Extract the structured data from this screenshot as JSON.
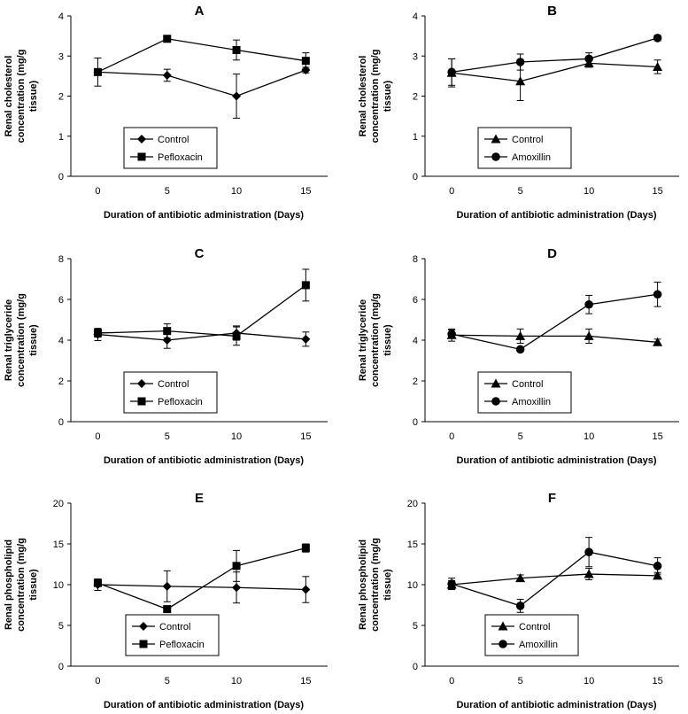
{
  "chart_data": [
    {
      "panel": "A",
      "type": "line",
      "x": [
        0,
        5,
        10,
        15
      ],
      "ylim": [
        0,
        4
      ],
      "yticks": [
        0,
        1,
        2,
        3,
        4
      ],
      "xlabel": "Duration of antibiotic administration (Days)",
      "ylabel": [
        "Renal cholesterol",
        "concentration (mg/g",
        "tissue)"
      ],
      "series": [
        {
          "name": "Control",
          "marker": "diamond",
          "values": [
            2.6,
            2.52,
            2.0,
            2.65
          ],
          "errors": [
            0.0,
            0.15,
            0.55,
            0.07
          ]
        },
        {
          "name": "Pefloxacin",
          "marker": "square",
          "values": [
            2.6,
            3.43,
            3.15,
            2.88
          ],
          "errors": [
            0.35,
            0.08,
            0.25,
            0.2
          ]
        }
      ]
    },
    {
      "panel": "B",
      "type": "line",
      "x": [
        0,
        5,
        10,
        15
      ],
      "ylim": [
        0,
        4
      ],
      "yticks": [
        0,
        1,
        2,
        3,
        4
      ],
      "xlabel": "Duration of antibiotic administration (Days)",
      "ylabel": [
        "Renal cholesterol",
        "concentration (mg/g",
        "tissue)"
      ],
      "series": [
        {
          "name": "Control",
          "marker": "triangle",
          "values": [
            2.58,
            2.37,
            2.82,
            2.73
          ],
          "errors": [
            0.35,
            0.48,
            0.1,
            0.17
          ]
        },
        {
          "name": "Amoxillin",
          "marker": "circle",
          "values": [
            2.6,
            2.85,
            2.93,
            3.45
          ],
          "errors": [
            0.33,
            0.2,
            0.15,
            0.07
          ]
        }
      ]
    },
    {
      "panel": "C",
      "type": "line",
      "x": [
        0,
        5,
        10,
        15
      ],
      "ylim": [
        0,
        8
      ],
      "yticks": [
        0,
        2,
        4,
        6,
        8
      ],
      "xlabel": "Duration of antibiotic administration (Days)",
      "ylabel": [
        "Renal triglyceride",
        "concentration (mg/g",
        "tissue)"
      ],
      "series": [
        {
          "name": "Control",
          "marker": "diamond",
          "values": [
            4.28,
            4.0,
            4.35,
            4.05
          ],
          "errors": [
            0.3,
            0.4,
            0.35,
            0.35
          ]
        },
        {
          "name": "Pefloxacin",
          "marker": "square",
          "values": [
            4.35,
            4.45,
            4.2,
            6.7
          ],
          "errors": [
            0.2,
            0.35,
            0.45,
            0.78
          ]
        }
      ]
    },
    {
      "panel": "D",
      "type": "line",
      "x": [
        0,
        5,
        10,
        15
      ],
      "ylim": [
        0,
        8
      ],
      "yticks": [
        0,
        2,
        4,
        6,
        8
      ],
      "xlabel": "Duration of antibiotic administration (Days)",
      "ylabel": [
        "Renal triglyceride",
        "concentration (mg/g",
        "tissue)"
      ],
      "series": [
        {
          "name": "Control",
          "marker": "triangle",
          "values": [
            4.25,
            4.2,
            4.2,
            3.9
          ],
          "errors": [
            0.3,
            0.35,
            0.35,
            0.15
          ]
        },
        {
          "name": "Amoxillin",
          "marker": "circle",
          "values": [
            4.3,
            3.55,
            5.75,
            6.25
          ],
          "errors": [
            0.2,
            0.1,
            0.45,
            0.6
          ]
        }
      ]
    },
    {
      "panel": "E",
      "type": "line",
      "x": [
        0,
        5,
        10,
        15
      ],
      "ylim": [
        0,
        20
      ],
      "yticks": [
        0,
        5,
        10,
        15,
        20
      ],
      "xlabel": "Duration of antibiotic administration (Days)",
      "ylabel": [
        "Renal phospholipid",
        "concentration (mg/g",
        "tissue)"
      ],
      "series": [
        {
          "name": "Control",
          "marker": "diamond",
          "values": [
            10.0,
            9.8,
            9.65,
            9.4
          ],
          "errors": [
            0.7,
            1.9,
            1.9,
            1.6
          ]
        },
        {
          "name": "Pefloxacin",
          "marker": "square",
          "values": [
            10.2,
            7.0,
            12.3,
            14.5
          ],
          "errors": [
            0.4,
            0.3,
            1.9,
            0.5
          ]
        }
      ]
    },
    {
      "panel": "F",
      "type": "line",
      "x": [
        0,
        5,
        10,
        15
      ],
      "ylim": [
        0,
        20
      ],
      "yticks": [
        0,
        5,
        10,
        15,
        20
      ],
      "xlabel": "Duration of antibiotic administration (Days)",
      "ylabel": [
        "Renal phospholipid",
        "concentration (mg/g",
        "tissue)"
      ],
      "series": [
        {
          "name": "Control",
          "marker": "triangle",
          "values": [
            10.0,
            10.8,
            11.3,
            11.1
          ],
          "errors": [
            0.5,
            0.4,
            0.7,
            0.4
          ]
        },
        {
          "name": "Amoxillin",
          "marker": "circle",
          "values": [
            10.1,
            7.4,
            14.0,
            12.3
          ],
          "errors": [
            0.7,
            0.8,
            1.8,
            1.0
          ]
        }
      ]
    }
  ]
}
